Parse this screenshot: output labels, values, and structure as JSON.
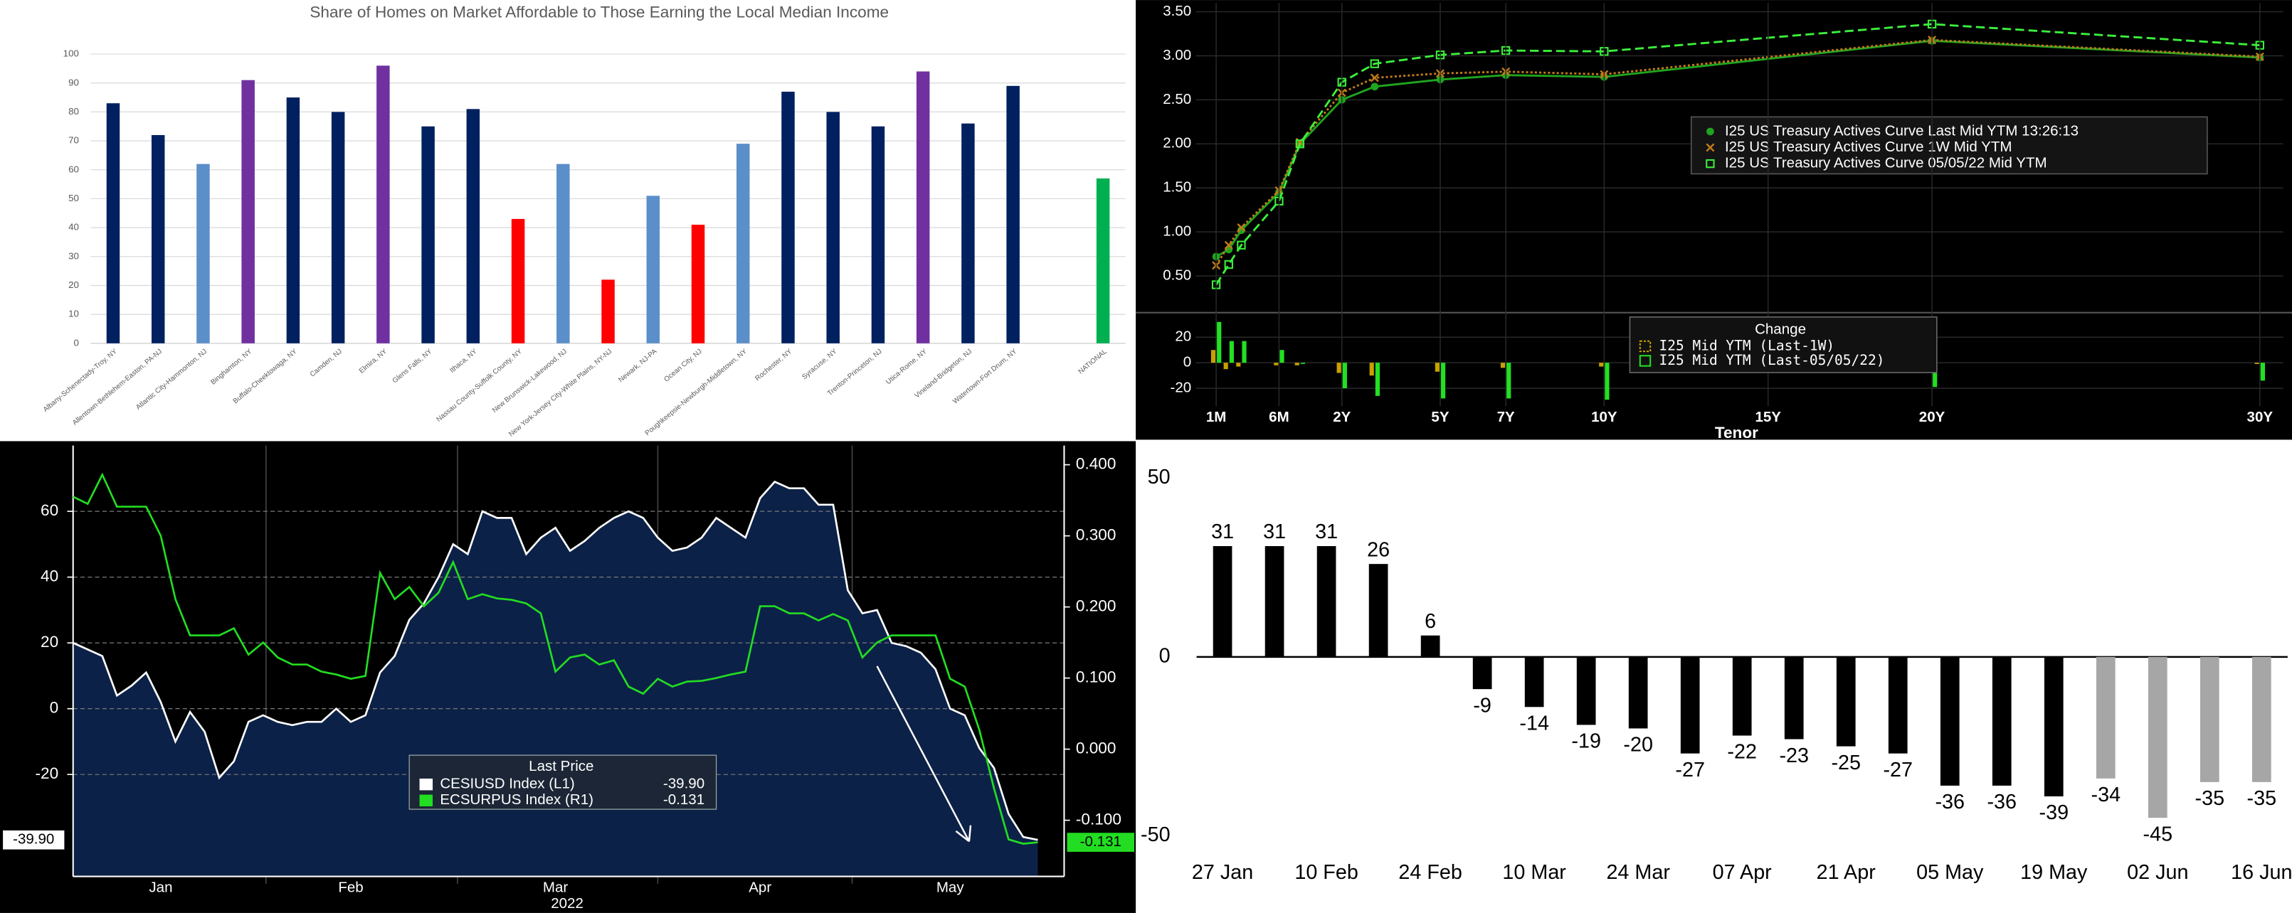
{
  "chart_data": [
    {
      "type": "bar",
      "title": "Share of Homes on Market Affordable to Those Earning the Local Median Income",
      "categories": [
        "Albany-Schenectady-Troy, NY",
        "Allentown-Bethlehem-Easton, PA-NJ",
        "Atlantic City-Hammonton, NJ",
        "Binghamton, NY",
        "Buffalo-Cheektowaga, NY",
        "Camden, NJ",
        "Elmira, NY",
        "Glens Falls, NY",
        "Ithaca, NY",
        "Nassau County-Suffolk County, NY",
        "New Brunswick-Lakewood, NJ",
        "New York-Jersey City-White Plains, NY-NJ",
        "Newark, NJ-PA",
        "Ocean City, NJ",
        "Poughkeepsie-Newburgh-Middletown, NY",
        "Rochester, NY",
        "Syracuse, NY",
        "Trenton-Princeton, NJ",
        "Utica-Rome, NY",
        "Vineland-Bridgeton, NJ",
        "Watertown-Fort Drum, NY",
        null,
        "NATIONAL"
      ],
      "values": [
        83,
        72,
        62,
        91,
        85,
        80,
        96,
        75,
        81,
        43,
        62,
        22,
        51,
        41,
        69,
        87,
        80,
        75,
        94,
        76,
        89,
        null,
        57
      ],
      "colors": [
        "#002060",
        "#002060",
        "#5b8fc9",
        "#7030a0",
        "#002060",
        "#002060",
        "#7030a0",
        "#002060",
        "#002060",
        "#ff0000",
        "#5b8fc9",
        "#ff0000",
        "#5b8fc9",
        "#ff0000",
        "#5b8fc9",
        "#002060",
        "#002060",
        "#002060",
        "#7030a0",
        "#002060",
        "#002060",
        null,
        "#00b050"
      ],
      "ylim": [
        0,
        100
      ],
      "yticks": [
        0,
        10,
        20,
        30,
        40,
        50,
        60,
        70,
        80,
        90,
        100
      ],
      "grid": true
    },
    {
      "type": "line",
      "x": [
        0.0833,
        0.1667,
        0.25,
        0.5,
        1,
        2,
        3,
        5,
        7,
        10,
        20,
        30
      ],
      "ylim": [
        0.1,
        3.6
      ],
      "yticks": [
        {
          "value": 0.5,
          "label": "0.50"
        },
        {
          "value": 1.0,
          "label": "1.00"
        },
        {
          "value": 1.5,
          "label": "1.50"
        },
        {
          "value": 2.0,
          "label": "2.00"
        },
        {
          "value": 2.5,
          "label": "2.50"
        },
        {
          "value": 3.0,
          "label": "3.00"
        },
        {
          "value": 3.5,
          "label": "3.50"
        }
      ],
      "grid": true,
      "series": [
        {
          "name": "I25 US Treasury Actives Curve Last Mid YTM 13:26:13",
          "color": "#1fa51f",
          "style": "solid",
          "marker": "circle",
          "values": [
            0.72,
            0.8,
            1.02,
            1.45,
            2.0,
            2.5,
            2.65,
            2.73,
            2.78,
            2.76,
            3.17,
            2.98
          ]
        },
        {
          "name": "I25 US Treasury Actives Curve 1W Mid YTM",
          "color": "#c07a1a",
          "style": "dotted",
          "marker": "x",
          "values": [
            0.62,
            0.85,
            1.05,
            1.47,
            2.02,
            2.58,
            2.75,
            2.8,
            2.82,
            2.79,
            3.18,
            2.99
          ]
        },
        {
          "name": "I25 US Treasury Actives Curve 05/05/22 Mid YTM",
          "color": "#3cf03c",
          "style": "dashed",
          "marker": "square",
          "values": [
            0.4,
            0.63,
            0.85,
            1.35,
            2.0,
            2.7,
            2.91,
            3.01,
            3.06,
            3.05,
            3.36,
            3.12
          ]
        }
      ]
    },
    {
      "type": "bar",
      "title": "Change",
      "xlabel": "Tenor",
      "x": [
        0.0833,
        0.1667,
        0.25,
        0.5,
        1,
        2,
        3,
        5,
        7,
        10,
        20,
        30
      ],
      "xticks": [
        {
          "value": 0.0833,
          "label": "1M"
        },
        {
          "value": 0.5,
          "label": "6M"
        },
        {
          "value": 2,
          "label": "2Y"
        },
        {
          "value": 5,
          "label": "5Y"
        },
        {
          "value": 7,
          "label": "7Y"
        },
        {
          "value": 10,
          "label": "10Y"
        },
        {
          "value": 15,
          "label": "15Y"
        },
        {
          "value": 20,
          "label": "20Y"
        },
        {
          "value": 30,
          "label": "30Y"
        }
      ],
      "ylim": [
        -34,
        37
      ],
      "yticks": [
        -20,
        0,
        20
      ],
      "grid": true,
      "series": [
        {
          "name": "I25 Mid YTM (Last-1W)",
          "color": "#c8a000",
          "values": [
            10,
            -5,
            -3,
            -2,
            -2,
            -8,
            -10,
            -7,
            -4,
            -3,
            -1,
            -1
          ]
        },
        {
          "name": "I25 Mid YTM (Last-05/05/22)",
          "color": "#22e022",
          "values": [
            32,
            17,
            17,
            10,
            0,
            -20,
            -26,
            -28,
            -28,
            -29,
            -19,
            -14
          ]
        }
      ]
    },
    {
      "type": "line",
      "legend_title": "Last Price",
      "xlabel": "2022",
      "categories": [
        null,
        null,
        null,
        null,
        null,
        null,
        "Jan",
        null,
        null,
        null,
        null,
        null,
        null,
        null,
        null,
        null,
        null,
        null,
        null,
        "Feb",
        null,
        null,
        null,
        null,
        null,
        null,
        null,
        null,
        null,
        null,
        null,
        null,
        null,
        "Mar",
        null,
        null,
        null,
        null,
        null,
        null,
        null,
        null,
        null,
        null,
        null,
        null,
        null,
        "Apr",
        null,
        null,
        null,
        null,
        null,
        null,
        null,
        null,
        null,
        null,
        null,
        null,
        "May",
        null,
        null,
        null,
        null,
        null,
        null
      ],
      "ylim": [
        -51,
        80
      ],
      "yticks": [
        -20,
        0,
        20,
        40,
        60
      ],
      "y2lim": [
        -0.179,
        0.427
      ],
      "y2ticks": [
        {
          "value": -0.1,
          "label": "-0.100"
        },
        {
          "value": 0,
          "label": "0.000"
        },
        {
          "value": 0.1,
          "label": "0.100"
        },
        {
          "value": 0.2,
          "label": "0.200"
        },
        {
          "value": 0.3,
          "label": "0.300"
        },
        {
          "value": 0.4,
          "label": "0.400"
        }
      ],
      "grid": true,
      "series": [
        {
          "name": "CESIUSD Index  (L1)",
          "color": "#ffffff",
          "fill": "#0c2147",
          "axis": "y",
          "values": [
            20,
            18,
            16,
            4,
            7,
            11,
            2,
            -10,
            -1,
            -7,
            -21,
            -16,
            -4,
            -2,
            -4,
            -5,
            -4,
            -4,
            0,
            -4,
            -2,
            11,
            16,
            27,
            32,
            40,
            50,
            47,
            60,
            58,
            58,
            47,
            52,
            55,
            48,
            51,
            55,
            58,
            60,
            58,
            52,
            48,
            49,
            52,
            58,
            55,
            52,
            64,
            69,
            67,
            67,
            62,
            62,
            36,
            29,
            30,
            20,
            19,
            17,
            12,
            0,
            -2,
            -12,
            -18,
            -32,
            -39,
            -39.9
          ],
          "value_labels": [
            null,
            null,
            null,
            null,
            null,
            null,
            null,
            null,
            null,
            null,
            null,
            null,
            null,
            null,
            null,
            null,
            null,
            null,
            null,
            null,
            null,
            null,
            null,
            null,
            null,
            null,
            null,
            null,
            null,
            null,
            null,
            null,
            null,
            null,
            null,
            null,
            null,
            null,
            null,
            null,
            null,
            null,
            null,
            null,
            null,
            null,
            null,
            null,
            null,
            null,
            null,
            null,
            null,
            null,
            null,
            null,
            null,
            null,
            null,
            null,
            null,
            null,
            null,
            null,
            null,
            null,
            "-39.90"
          ]
        },
        {
          "name": "ECSURPUS Index  (R1)",
          "color": "#22dd22",
          "axis": "y2",
          "values": [
            0.355,
            0.345,
            0.386,
            0.341,
            0.341,
            0.341,
            0.3,
            0.211,
            0.16,
            0.16,
            0.16,
            0.17,
            0.133,
            0.15,
            0.129,
            0.119,
            0.119,
            0.109,
            0.105,
            0.099,
            0.103,
            0.248,
            0.211,
            0.228,
            0.201,
            0.22,
            0.263,
            0.211,
            0.218,
            0.212,
            0.21,
            0.205,
            0.191,
            0.109,
            0.129,
            0.133,
            0.119,
            0.125,
            0.088,
            0.078,
            0.099,
            0.088,
            0.095,
            0.096,
            0.1,
            0.105,
            0.109,
            0.201,
            0.201,
            0.191,
            0.191,
            0.181,
            0.19,
            0.181,
            0.129,
            0.15,
            0.16,
            0.16,
            0.16,
            0.16,
            0.099,
            0.088,
            0.027,
            -0.055,
            -0.127,
            -0.133,
            -0.131
          ],
          "value_labels": [
            null,
            null,
            null,
            null,
            null,
            null,
            null,
            null,
            null,
            null,
            null,
            null,
            null,
            null,
            null,
            null,
            null,
            null,
            null,
            null,
            null,
            null,
            null,
            null,
            null,
            null,
            null,
            null,
            null,
            null,
            null,
            null,
            null,
            null,
            null,
            null,
            null,
            null,
            null,
            null,
            null,
            null,
            null,
            null,
            null,
            null,
            null,
            null,
            null,
            null,
            null,
            null,
            null,
            null,
            null,
            null,
            null,
            null,
            null,
            null,
            null,
            null,
            null,
            null,
            null,
            null,
            "-0.131"
          ]
        }
      ]
    },
    {
      "type": "bar",
      "categories": [
        "27 Jan",
        null,
        "10 Feb",
        null,
        "24 Feb",
        null,
        "10 Mar",
        null,
        "24 Mar",
        null,
        "07 Apr",
        null,
        "21 Apr",
        null,
        "05 May",
        null,
        "19 May",
        null,
        "02 Jun",
        null,
        "16 Jun"
      ],
      "values": [
        31,
        31,
        31,
        26,
        6,
        -9,
        -14,
        -19,
        -20,
        -27,
        -22,
        -23,
        -25,
        -27,
        -36,
        -36,
        -39,
        -34,
        -45,
        -35,
        -35
      ],
      "colors": [
        "#000000",
        "#000000",
        "#000000",
        "#000000",
        "#000000",
        "#000000",
        "#000000",
        "#000000",
        "#000000",
        "#000000",
        "#000000",
        "#000000",
        "#000000",
        "#000000",
        "#000000",
        "#000000",
        "#000000",
        "#a6a6a6",
        "#a6a6a6",
        "#a6a6a6",
        "#a6a6a6"
      ],
      "ylim": [
        -52,
        53
      ],
      "yticks": [
        -50,
        0,
        50
      ],
      "grid": false,
      "data_labels": true
    }
  ]
}
